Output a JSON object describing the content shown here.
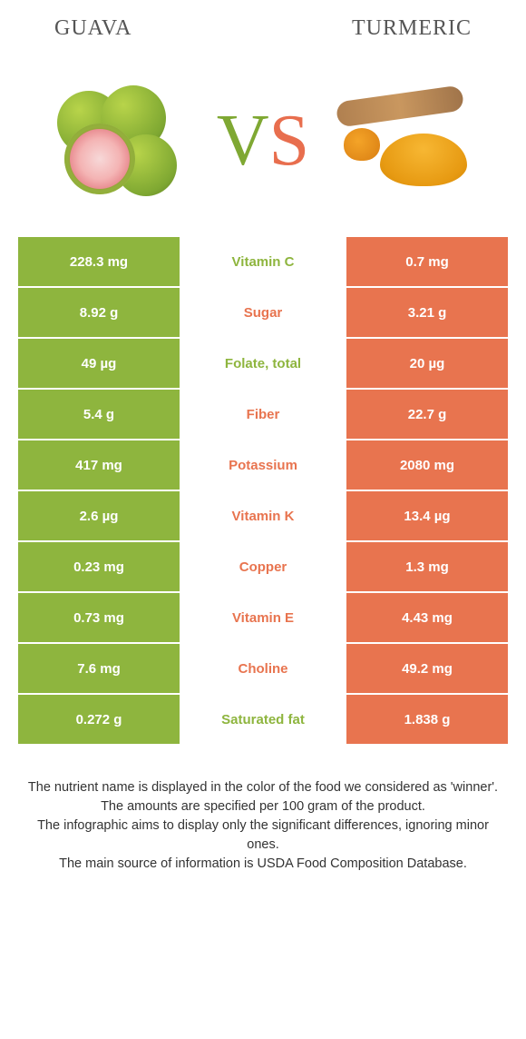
{
  "colors": {
    "green": "#8eb53e",
    "orange": "#e8744f",
    "text": "#333333",
    "bg": "#ffffff"
  },
  "header": {
    "left": "GUAVA",
    "right": "TURMERIC"
  },
  "vs": {
    "v": "V",
    "s": "S"
  },
  "rows": [
    {
      "left": "228.3 mg",
      "label": "Vitamin C",
      "right": "0.7 mg",
      "winner": "left"
    },
    {
      "left": "8.92 g",
      "label": "Sugar",
      "right": "3.21 g",
      "winner": "right"
    },
    {
      "left": "49 µg",
      "label": "Folate, total",
      "right": "20 µg",
      "winner": "left"
    },
    {
      "left": "5.4 g",
      "label": "Fiber",
      "right": "22.7 g",
      "winner": "right"
    },
    {
      "left": "417 mg",
      "label": "Potassium",
      "right": "2080 mg",
      "winner": "right"
    },
    {
      "left": "2.6 µg",
      "label": "Vitamin K",
      "right": "13.4 µg",
      "winner": "right"
    },
    {
      "left": "0.23 mg",
      "label": "Copper",
      "right": "1.3 mg",
      "winner": "right"
    },
    {
      "left": "0.73 mg",
      "label": "Vitamin E",
      "right": "4.43 mg",
      "winner": "right"
    },
    {
      "left": "7.6 mg",
      "label": "Choline",
      "right": "49.2 mg",
      "winner": "right"
    },
    {
      "left": "0.272 g",
      "label": "Saturated fat",
      "right": "1.838 g",
      "winner": "left"
    }
  ],
  "footer": {
    "l1": "The nutrient name is displayed in the color of the food we considered as 'winner'.",
    "l2": "The amounts are specified per 100 gram of the product.",
    "l3": "The infographic aims to display only the significant differences, ignoring minor ones.",
    "l4": "The main source of information is USDA Food Composition Database."
  }
}
